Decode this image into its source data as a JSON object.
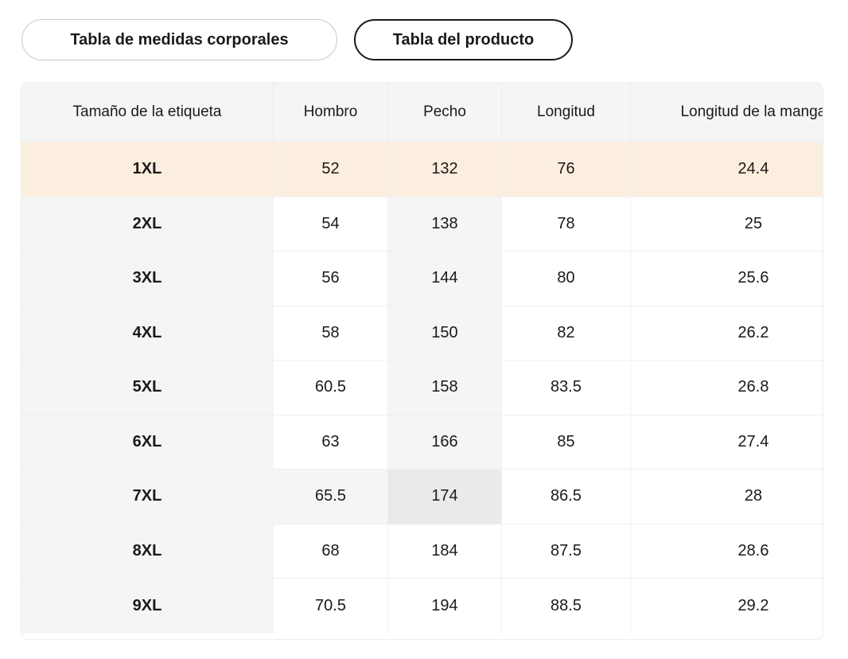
{
  "tabs": [
    {
      "label": "Tabla de medidas corporales",
      "active": false
    },
    {
      "label": "Tabla del producto",
      "active": true
    }
  ],
  "table": {
    "columns": [
      "Tamaño de la etiqueta",
      "Hombro",
      "Pecho",
      "Longitud",
      "Longitud de la manga"
    ],
    "rows": [
      {
        "size": "1XL",
        "values": [
          "52",
          "132",
          "76",
          "24.4"
        ]
      },
      {
        "size": "2XL",
        "values": [
          "54",
          "138",
          "78",
          "25"
        ]
      },
      {
        "size": "3XL",
        "values": [
          "56",
          "144",
          "80",
          "25.6"
        ]
      },
      {
        "size": "4XL",
        "values": [
          "58",
          "150",
          "82",
          "26.2"
        ]
      },
      {
        "size": "5XL",
        "values": [
          "60.5",
          "158",
          "83.5",
          "26.8"
        ]
      },
      {
        "size": "6XL",
        "values": [
          "63",
          "166",
          "85",
          "27.4"
        ]
      },
      {
        "size": "7XL",
        "values": [
          "65.5",
          "174",
          "86.5",
          "28"
        ]
      },
      {
        "size": "8XL",
        "values": [
          "68",
          "184",
          "87.5",
          "28.6"
        ]
      },
      {
        "size": "9XL",
        "values": [
          "70.5",
          "194",
          "88.5",
          "29.2"
        ]
      }
    ],
    "selected_size": "1XL",
    "hovered_cell": {
      "size": "7XL",
      "column": "Pecho"
    }
  },
  "colors": {
    "selected_row_bg": "#fceede",
    "header_bg": "#f5f5f6",
    "guide_cell_bg": "#f5f5f6",
    "hovered_cell_bg": "#eaeaea",
    "text": "#1a1a1a",
    "active_tab_border": "#1a1a1a",
    "inactive_tab_border": "#c9c9c9"
  }
}
